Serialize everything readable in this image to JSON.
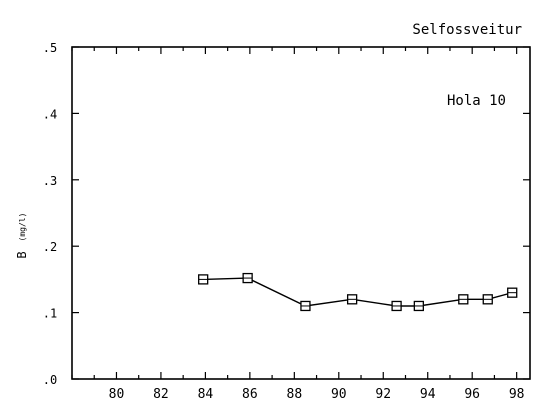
{
  "chart_data": {
    "type": "line",
    "title": "Selfossveitur",
    "subtitle": "Hola 10",
    "ylabel_main": "B",
    "ylabel_unit": "(mg/l)",
    "xlim": [
      78,
      98.6
    ],
    "ylim": [
      0,
      0.5
    ],
    "xticks": [
      80,
      82,
      84,
      86,
      88,
      90,
      92,
      94,
      96,
      98
    ],
    "xtick_labels": [
      "80",
      "82",
      "84",
      "86",
      "88",
      "90",
      "92",
      "94",
      "96",
      "98"
    ],
    "yticks": [
      0,
      0.1,
      0.2,
      0.3,
      0.4,
      0.5
    ],
    "ytick_labels": [
      ".0",
      ".1",
      ".2",
      ".3",
      ".4",
      ".5"
    ],
    "grid": false,
    "marker": "square",
    "series": [
      {
        "x": [
          83.9,
          85.9,
          88.5,
          90.6,
          92.6,
          93.6,
          95.6,
          96.7,
          97.8
        ],
        "y": [
          0.15,
          0.152,
          0.11,
          0.12,
          0.11,
          0.11,
          0.12,
          0.12,
          0.13
        ]
      }
    ]
  }
}
